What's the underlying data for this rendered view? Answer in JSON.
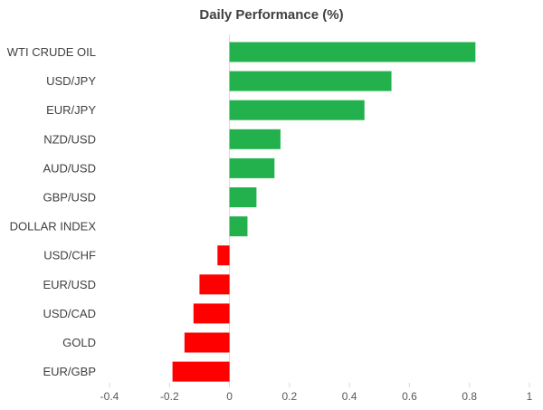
{
  "chart_data": {
    "type": "bar",
    "orientation": "horizontal",
    "title": "Daily Performance  (%)",
    "categories": [
      "WTI CRUDE OIL",
      "USD/JPY",
      "EUR/JPY",
      "NZD/USD",
      "AUD/USD",
      "GBP/USD",
      "DOLLAR INDEX",
      "USD/CHF",
      "EUR/USD",
      "USD/CAD",
      "GOLD",
      "EUR/GBP"
    ],
    "values": [
      0.82,
      0.54,
      0.45,
      0.17,
      0.15,
      0.09,
      0.06,
      -0.04,
      -0.1,
      -0.12,
      -0.15,
      -0.19
    ],
    "xlim": [
      -0.4,
      1
    ],
    "xticks": [
      -0.4,
      -0.2,
      0,
      0.2,
      0.4,
      0.6,
      0.8,
      1
    ],
    "xtick_labels": [
      "-0.4",
      "-0.2",
      "0",
      "0.2",
      "0.4",
      "0.6",
      "0.8",
      "1"
    ],
    "grid": false,
    "legend": "none",
    "colors": {
      "positive": "#22b14c",
      "negative": "#ff0000",
      "axis": "#d9d9d9"
    }
  }
}
